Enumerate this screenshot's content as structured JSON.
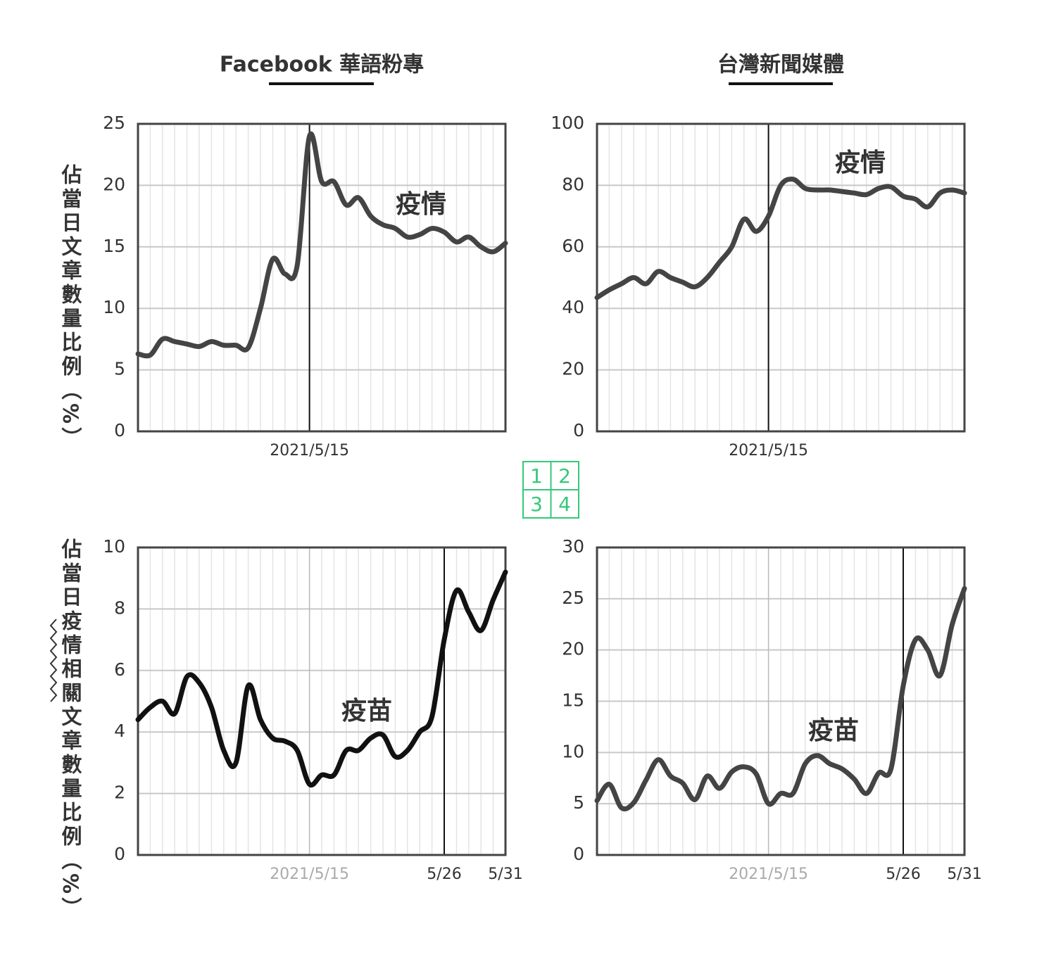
{
  "header": {
    "columns": [
      "Facebook 華語粉專",
      "台灣新聞媒體"
    ]
  },
  "y_labels": [
    "佔當日文章數量比例（%）",
    "佔當日疫情相關文章數量比例（%）"
  ],
  "panel_index": [
    "1",
    "2",
    "3",
    "4"
  ],
  "chart_data": [
    {
      "type": "line",
      "annotation": "疫情",
      "color": "#444444",
      "x": [
        1,
        2,
        3,
        4,
        5,
        6,
        7,
        8,
        9,
        10,
        11,
        12,
        13,
        14,
        15,
        16,
        17,
        18,
        19,
        20,
        21,
        22,
        23,
        24,
        25,
        26,
        27,
        28,
        29,
        30,
        31
      ],
      "series": [
        {
          "name": "疫情",
          "color": "#444444",
          "values": [
            6.3,
            6.2,
            7.5,
            7.3,
            7.1,
            6.9,
            7.3,
            7.0,
            7.0,
            6.8,
            10,
            14,
            12.8,
            13.5,
            24,
            20.3,
            20.3,
            18.4,
            19,
            17.5,
            16.8,
            16.5,
            15.8,
            16.0,
            16.5,
            16.2,
            15.4,
            15.8,
            15.0,
            14.6,
            15.3
          ]
        }
      ],
      "xlim": [
        1,
        31
      ],
      "xticks": [
        {
          "value": 15,
          "label": "2021/5/15",
          "color": "#333333"
        }
      ],
      "reference_lines": [
        15
      ],
      "ylim": [
        0,
        25
      ],
      "yticks": [
        0,
        5,
        10,
        15,
        20,
        25
      ],
      "grid": true
    },
    {
      "type": "line",
      "annotation": "疫情",
      "color": "#444444",
      "x": [
        1,
        2,
        3,
        4,
        5,
        6,
        7,
        8,
        9,
        10,
        11,
        12,
        13,
        14,
        15,
        16,
        17,
        18,
        19,
        20,
        21,
        22,
        23,
        24,
        25,
        26,
        27,
        28,
        29,
        30,
        31
      ],
      "series": [
        {
          "name": "疫情",
          "color": "#444444",
          "values": [
            43.5,
            46,
            48,
            50,
            48,
            52,
            50,
            48.5,
            47,
            50,
            55,
            60,
            69,
            65,
            70,
            80,
            82,
            79,
            78.5,
            78.5,
            78,
            77.5,
            77,
            79,
            79.5,
            76.5,
            75.5,
            73,
            77.5,
            78.5,
            77.5
          ]
        }
      ],
      "xlim": [
        1,
        31
      ],
      "xticks": [
        {
          "value": 15,
          "label": "2021/5/15",
          "color": "#333333"
        }
      ],
      "reference_lines": [
        15
      ],
      "ylim": [
        0,
        100
      ],
      "yticks": [
        0,
        20,
        40,
        60,
        80,
        100
      ],
      "grid": true
    },
    {
      "type": "line",
      "annotation": "疫苗",
      "color": "#111111",
      "x": [
        1,
        2,
        3,
        4,
        5,
        6,
        7,
        8,
        9,
        10,
        11,
        12,
        13,
        14,
        15,
        16,
        17,
        18,
        19,
        20,
        21,
        22,
        23,
        24,
        25,
        26,
        27,
        28,
        29,
        30,
        31
      ],
      "series": [
        {
          "name": "疫苗",
          "color": "#111111",
          "values": [
            4.4,
            4.8,
            5.0,
            4.6,
            5.8,
            5.6,
            4.8,
            3.4,
            3.0,
            5.5,
            4.4,
            3.8,
            3.7,
            3.4,
            2.3,
            2.6,
            2.6,
            3.4,
            3.4,
            3.8,
            3.9,
            3.2,
            3.4,
            4.0,
            4.5,
            7.0,
            8.6,
            7.9,
            7.3,
            8.3,
            9.2
          ]
        }
      ],
      "xlim": [
        1,
        31
      ],
      "xticks": [
        {
          "value": 15,
          "label": "2021/5/15",
          "color": "#aaaaaa"
        },
        {
          "value": 26,
          "label": "5/26",
          "color": "#333333"
        },
        {
          "value": 31,
          "label": "5/31",
          "color": "#333333"
        }
      ],
      "reference_lines": [
        26
      ],
      "ylim": [
        0,
        10
      ],
      "yticks": [
        0,
        2,
        4,
        6,
        8,
        10
      ],
      "grid": true
    },
    {
      "type": "line",
      "annotation": "疫苗",
      "color": "#444444",
      "x": [
        1,
        2,
        3,
        4,
        5,
        6,
        7,
        8,
        9,
        10,
        11,
        12,
        13,
        14,
        15,
        16,
        17,
        18,
        19,
        20,
        21,
        22,
        23,
        24,
        25,
        26,
        27,
        28,
        29,
        30,
        31
      ],
      "series": [
        {
          "name": "疫苗",
          "color": "#444444",
          "values": [
            5.3,
            6.9,
            4.6,
            5.1,
            7.3,
            9.3,
            7.7,
            7.0,
            5.4,
            7.7,
            6.5,
            8.1,
            8.6,
            7.9,
            5.0,
            6.0,
            6.0,
            8.9,
            9.7,
            8.9,
            8.4,
            7.4,
            6.0,
            8.0,
            8.4,
            16.5,
            21,
            20,
            17.5,
            22.5,
            26
          ]
        }
      ],
      "xlim": [
        1,
        31
      ],
      "xticks": [
        {
          "value": 15,
          "label": "2021/5/15",
          "color": "#aaaaaa"
        },
        {
          "value": 26,
          "label": "5/26",
          "color": "#333333"
        },
        {
          "value": 31,
          "label": "5/31",
          "color": "#333333"
        }
      ],
      "reference_lines": [
        26
      ],
      "ylim": [
        0,
        30
      ],
      "yticks": [
        0,
        5,
        10,
        15,
        20,
        25,
        30
      ],
      "grid": true
    }
  ]
}
